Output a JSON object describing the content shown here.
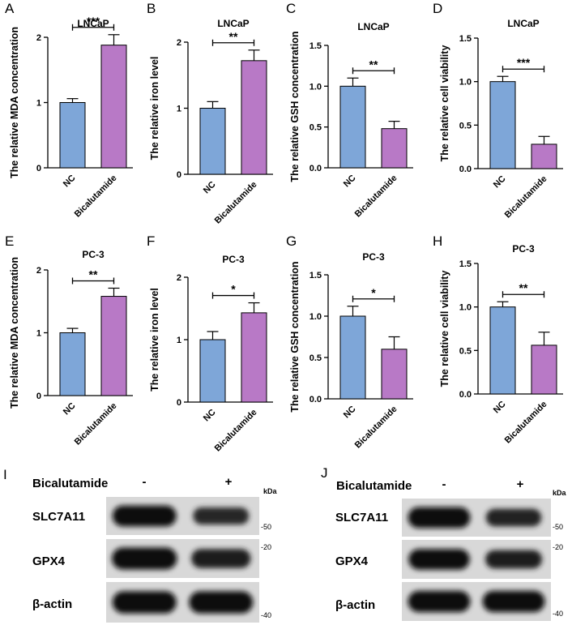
{
  "colors": {
    "nc": "#7EA6D8",
    "bicalutamide": "#B879C6",
    "axis": "#000000"
  },
  "chart_data": [
    {
      "panel": "A",
      "type": "bar",
      "title": "LNCaP",
      "ylabel": "The relative MDA concentration",
      "categories": [
        "NC",
        "Bicalutamide"
      ],
      "values": [
        1.0,
        1.88
      ],
      "errors": [
        0.06,
        0.16
      ],
      "ylim": [
        0,
        2
      ],
      "yticks": [
        "0",
        "1",
        "2"
      ],
      "significance": "***"
    },
    {
      "panel": "B",
      "type": "bar",
      "title": "LNCaP",
      "ylabel": "The relative iron level",
      "categories": [
        "NC",
        "Bicalutamide"
      ],
      "values": [
        1.0,
        1.72
      ],
      "errors": [
        0.1,
        0.16
      ],
      "ylim": [
        0,
        2
      ],
      "yticks": [
        "0",
        "1",
        "2"
      ],
      "significance": "**"
    },
    {
      "panel": "C",
      "type": "bar",
      "title": "LNCaP",
      "ylabel": "The relative GSH concentration",
      "categories": [
        "NC",
        "Bicalutamide"
      ],
      "values": [
        1.0,
        0.48
      ],
      "errors": [
        0.1,
        0.09
      ],
      "ylim": [
        0,
        1.5
      ],
      "yticks": [
        "0.0",
        "0.5",
        "1.0",
        "1.5"
      ],
      "significance": "**"
    },
    {
      "panel": "D",
      "type": "bar",
      "title": "LNCaP",
      "ylabel": "The relative cell viability",
      "categories": [
        "NC",
        "Bicalutamide"
      ],
      "values": [
        1.0,
        0.28
      ],
      "errors": [
        0.06,
        0.09
      ],
      "ylim": [
        0,
        1.5
      ],
      "yticks": [
        "0.0",
        "0.5",
        "1.0",
        "1.5"
      ],
      "significance": "***"
    },
    {
      "panel": "E",
      "type": "bar",
      "title": "PC-3",
      "ylabel": "The relative MDA concentration",
      "categories": [
        "NC",
        "Bicalutamide"
      ],
      "values": [
        1.0,
        1.58
      ],
      "errors": [
        0.07,
        0.13
      ],
      "ylim": [
        0,
        2
      ],
      "yticks": [
        "0",
        "1",
        "2"
      ],
      "significance": "**"
    },
    {
      "panel": "F",
      "type": "bar",
      "title": "PC-3",
      "ylabel": "The relative iron level",
      "categories": [
        "NC",
        "Bicalutamide"
      ],
      "values": [
        1.0,
        1.43
      ],
      "errors": [
        0.13,
        0.16
      ],
      "ylim": [
        0,
        2
      ],
      "yticks": [
        "0",
        "1",
        "2"
      ],
      "significance": "*"
    },
    {
      "panel": "G",
      "type": "bar",
      "title": "PC-3",
      "ylabel": "The relative GSH concentration",
      "categories": [
        "NC",
        "Bicalutamide"
      ],
      "values": [
        1.0,
        0.6
      ],
      "errors": [
        0.12,
        0.15
      ],
      "ylim": [
        0,
        1.5
      ],
      "yticks": [
        "0.0",
        "0.5",
        "1.0",
        "1.5"
      ],
      "significance": "*"
    },
    {
      "panel": "H",
      "type": "bar",
      "title": "PC-3",
      "ylabel": "The relative cell viability",
      "categories": [
        "NC",
        "Bicalutamide"
      ],
      "values": [
        1.0,
        0.56
      ],
      "errors": [
        0.06,
        0.15
      ],
      "ylim": [
        0,
        1.5
      ],
      "yticks": [
        "0.0",
        "0.5",
        "1.0",
        "1.5"
      ],
      "significance": "**"
    }
  ],
  "western_blots": [
    {
      "panel": "I",
      "treatment_label": "Bicalutamide",
      "minus": "-",
      "plus": "+",
      "unit": "kDa",
      "rows": [
        {
          "label": "SLC7A11",
          "marker": "-50",
          "lane_intensity": [
            0.95,
            0.6
          ]
        },
        {
          "label": "GPX4",
          "marker": "-20",
          "lane_intensity": [
            1.0,
            0.75
          ]
        },
        {
          "label": "β-actin",
          "marker": "-40",
          "lane_intensity": [
            0.95,
            0.95
          ]
        }
      ]
    },
    {
      "panel": "J",
      "treatment_label": "Bicalutamide",
      "minus": "-",
      "plus": "+",
      "unit": "kDa",
      "rows": [
        {
          "label": "SLC7A11",
          "marker": "-50",
          "lane_intensity": [
            0.95,
            0.65
          ]
        },
        {
          "label": "GPX4",
          "marker": "-20",
          "lane_intensity": [
            0.9,
            0.7
          ]
        },
        {
          "label": "β-actin",
          "marker": "-40",
          "lane_intensity": [
            0.95,
            0.95
          ]
        }
      ]
    }
  ]
}
